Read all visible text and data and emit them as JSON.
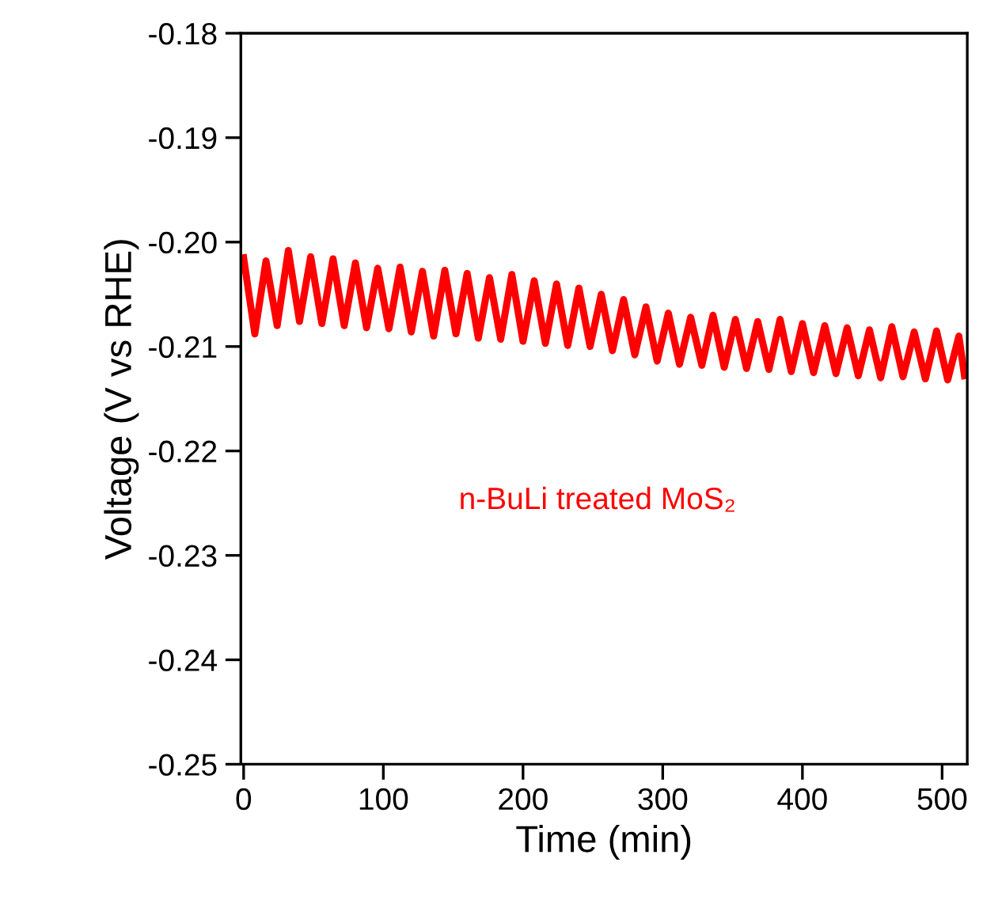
{
  "chart_data": {
    "type": "line",
    "xlabel": "Time (min)",
    "ylabel": "Voltage (V vs RHE)",
    "xlim": [
      -2,
      518
    ],
    "xticks": [
      0,
      100,
      200,
      300,
      400,
      500
    ],
    "ylim": [
      -0.25,
      -0.18
    ],
    "yticks": [
      {
        "value": -0.25,
        "label": "-0.25"
      },
      {
        "value": -0.24,
        "label": "-0.24"
      },
      {
        "value": -0.23,
        "label": "-0.23"
      },
      {
        "value": -0.22,
        "label": "-0.22"
      },
      {
        "value": -0.21,
        "label": "-0.21"
      },
      {
        "value": -0.2,
        "label": "-0.20"
      },
      {
        "value": -0.19,
        "label": "-0.19"
      },
      {
        "value": -0.18,
        "label": "-0.18"
      }
    ],
    "grid": false,
    "legend": false,
    "marker": "none",
    "line_style": "solid",
    "annotations": [
      "n-BuLi treated MoS₂"
    ],
    "series": [
      {
        "color": "#ff0000",
        "x": [
          0,
          8,
          16,
          24,
          32,
          40,
          48,
          56,
          64,
          72,
          80,
          88,
          96,
          104,
          112,
          120,
          128,
          136,
          144,
          152,
          160,
          168,
          176,
          184,
          192,
          200,
          208,
          216,
          224,
          232,
          240,
          248,
          256,
          264,
          272,
          280,
          288,
          296,
          304,
          312,
          320,
          328,
          336,
          344,
          352,
          360,
          368,
          376,
          384,
          392,
          400,
          408,
          416,
          424,
          432,
          440,
          448,
          456,
          464,
          472,
          480,
          488,
          496,
          504,
          512,
          516
        ],
        "values": [
          -0.2015,
          -0.2088,
          -0.2018,
          -0.208,
          -0.2008,
          -0.2076,
          -0.2014,
          -0.2078,
          -0.2016,
          -0.208,
          -0.202,
          -0.2082,
          -0.2025,
          -0.2083,
          -0.2024,
          -0.2086,
          -0.2028,
          -0.209,
          -0.2027,
          -0.2088,
          -0.203,
          -0.2092,
          -0.2034,
          -0.2093,
          -0.2031,
          -0.2095,
          -0.2037,
          -0.2097,
          -0.204,
          -0.2099,
          -0.2044,
          -0.21,
          -0.205,
          -0.2104,
          -0.2055,
          -0.2108,
          -0.2062,
          -0.2114,
          -0.2068,
          -0.2117,
          -0.2072,
          -0.2118,
          -0.207,
          -0.212,
          -0.2074,
          -0.2121,
          -0.2076,
          -0.2122,
          -0.2074,
          -0.2124,
          -0.2078,
          -0.2125,
          -0.208,
          -0.2126,
          -0.2082,
          -0.2128,
          -0.2084,
          -0.213,
          -0.2081,
          -0.2129,
          -0.2086,
          -0.2131,
          -0.2085,
          -0.2132,
          -0.209,
          -0.2128
        ]
      }
    ]
  }
}
